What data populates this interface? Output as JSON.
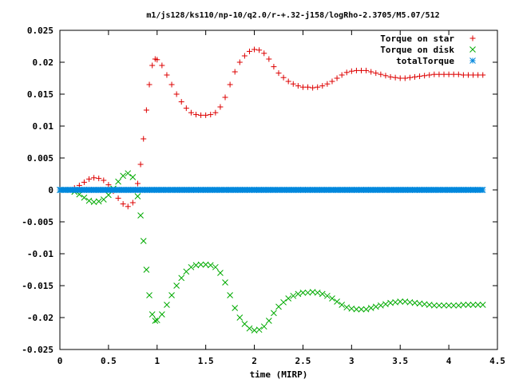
{
  "chart_data": {
    "type": "scatter",
    "title": "m1/js128/ks110/np-10/q2.0/r-+.32-j158/logRho-2.3705/M5.07/512",
    "xlabel": "time (MIRP)",
    "ylabel": "",
    "xlim": [
      0,
      4.5
    ],
    "ylim": [
      -0.025,
      0.025
    ],
    "x_ticks": [
      "0",
      "0.5",
      "1",
      "1.5",
      "2",
      "2.5",
      "3",
      "3.5",
      "4",
      "4.5"
    ],
    "x_tick_values": [
      0,
      0.5,
      1,
      1.5,
      2,
      2.5,
      3,
      3.5,
      4,
      4.5
    ],
    "y_ticks": [
      "0.025",
      "0.02",
      "0.015",
      "0.01",
      "0.005",
      "0",
      "-0.005",
      "-0.01",
      "-0.015",
      "-0.02",
      "-0.025"
    ],
    "y_tick_values": [
      0.025,
      0.02,
      0.015,
      0.01,
      0.005,
      0,
      -0.005,
      -0.01,
      -0.015,
      -0.02,
      -0.025
    ],
    "grid": false,
    "legend_position": "top-right",
    "x_range": [
      0,
      4.35
    ],
    "series": [
      {
        "name": "Torque on star",
        "marker": "plus",
        "color": "#dd0000",
        "points": [
          [
            0.0,
            0.0
          ],
          [
            0.05,
            0.0
          ],
          [
            0.1,
            0.0
          ],
          [
            0.15,
            0.0003
          ],
          [
            0.2,
            0.0007
          ],
          [
            0.25,
            0.0012
          ],
          [
            0.3,
            0.0017
          ],
          [
            0.35,
            0.0019
          ],
          [
            0.4,
            0.0018
          ],
          [
            0.45,
            0.0015
          ],
          [
            0.5,
            0.0008
          ],
          [
            0.55,
            -0.0002
          ],
          [
            0.6,
            -0.0013
          ],
          [
            0.65,
            -0.0022
          ],
          [
            0.7,
            -0.0026
          ],
          [
            0.75,
            -0.002
          ],
          [
            0.8,
            0.001
          ],
          [
            0.83,
            0.004
          ],
          [
            0.86,
            0.008
          ],
          [
            0.89,
            0.0125
          ],
          [
            0.92,
            0.0165
          ],
          [
            0.95,
            0.0195
          ],
          [
            0.98,
            0.0205
          ],
          [
            1.0,
            0.0204
          ],
          [
            1.05,
            0.0195
          ],
          [
            1.1,
            0.018
          ],
          [
            1.15,
            0.0165
          ],
          [
            1.2,
            0.015
          ],
          [
            1.25,
            0.0138
          ],
          [
            1.3,
            0.0128
          ],
          [
            1.35,
            0.0121
          ],
          [
            1.4,
            0.0118
          ],
          [
            1.45,
            0.0117
          ],
          [
            1.5,
            0.0117
          ],
          [
            1.55,
            0.0118
          ],
          [
            1.6,
            0.0121
          ],
          [
            1.65,
            0.013
          ],
          [
            1.7,
            0.0145
          ],
          [
            1.75,
            0.0165
          ],
          [
            1.8,
            0.0185
          ],
          [
            1.85,
            0.02
          ],
          [
            1.9,
            0.021
          ],
          [
            1.95,
            0.0217
          ],
          [
            2.0,
            0.022
          ],
          [
            2.05,
            0.0219
          ],
          [
            2.1,
            0.0214
          ],
          [
            2.15,
            0.0205
          ],
          [
            2.2,
            0.0193
          ],
          [
            2.25,
            0.0183
          ],
          [
            2.3,
            0.0176
          ],
          [
            2.35,
            0.017
          ],
          [
            2.4,
            0.0166
          ],
          [
            2.45,
            0.0163
          ],
          [
            2.5,
            0.0161
          ],
          [
            2.55,
            0.0161
          ],
          [
            2.6,
            0.016
          ],
          [
            2.65,
            0.0161
          ],
          [
            2.7,
            0.0163
          ],
          [
            2.75,
            0.0166
          ],
          [
            2.8,
            0.017
          ],
          [
            2.85,
            0.0175
          ],
          [
            2.9,
            0.018
          ],
          [
            2.95,
            0.0184
          ],
          [
            3.0,
            0.0186
          ],
          [
            3.05,
            0.0187
          ],
          [
            3.1,
            0.0187
          ],
          [
            3.15,
            0.0187
          ],
          [
            3.2,
            0.0185
          ],
          [
            3.25,
            0.0183
          ],
          [
            3.3,
            0.0181
          ],
          [
            3.35,
            0.0179
          ],
          [
            3.4,
            0.0177
          ],
          [
            3.45,
            0.0176
          ],
          [
            3.5,
            0.0175
          ],
          [
            3.55,
            0.0175
          ],
          [
            3.6,
            0.0176
          ],
          [
            3.65,
            0.0177
          ],
          [
            3.7,
            0.0178
          ],
          [
            3.75,
            0.0179
          ],
          [
            3.8,
            0.018
          ],
          [
            3.85,
            0.0181
          ],
          [
            3.9,
            0.0181
          ],
          [
            3.95,
            0.0181
          ],
          [
            4.0,
            0.0181
          ],
          [
            4.05,
            0.0181
          ],
          [
            4.1,
            0.0181
          ],
          [
            4.15,
            0.018
          ],
          [
            4.2,
            0.018
          ],
          [
            4.25,
            0.018
          ],
          [
            4.3,
            0.018
          ],
          [
            4.35,
            0.018
          ]
        ]
      },
      {
        "name": "Torque on disk",
        "marker": "cross",
        "color": "#00aa00",
        "points": [
          [
            0.0,
            0.0
          ],
          [
            0.05,
            0.0
          ],
          [
            0.1,
            0.0
          ],
          [
            0.15,
            -0.0003
          ],
          [
            0.2,
            -0.0007
          ],
          [
            0.25,
            -0.0012
          ],
          [
            0.3,
            -0.0017
          ],
          [
            0.35,
            -0.0019
          ],
          [
            0.4,
            -0.0018
          ],
          [
            0.45,
            -0.0015
          ],
          [
            0.5,
            -0.0008
          ],
          [
            0.55,
            0.0002
          ],
          [
            0.6,
            0.0013
          ],
          [
            0.65,
            0.0022
          ],
          [
            0.7,
            0.0026
          ],
          [
            0.75,
            0.002
          ],
          [
            0.8,
            -0.001
          ],
          [
            0.83,
            -0.004
          ],
          [
            0.86,
            -0.008
          ],
          [
            0.89,
            -0.0125
          ],
          [
            0.92,
            -0.0165
          ],
          [
            0.95,
            -0.0195
          ],
          [
            0.98,
            -0.0205
          ],
          [
            1.0,
            -0.0204
          ],
          [
            1.05,
            -0.0195
          ],
          [
            1.1,
            -0.018
          ],
          [
            1.15,
            -0.0165
          ],
          [
            1.2,
            -0.015
          ],
          [
            1.25,
            -0.0138
          ],
          [
            1.3,
            -0.0128
          ],
          [
            1.35,
            -0.0121
          ],
          [
            1.4,
            -0.0118
          ],
          [
            1.45,
            -0.0117
          ],
          [
            1.5,
            -0.0117
          ],
          [
            1.55,
            -0.0118
          ],
          [
            1.6,
            -0.0121
          ],
          [
            1.65,
            -0.013
          ],
          [
            1.7,
            -0.0145
          ],
          [
            1.75,
            -0.0165
          ],
          [
            1.8,
            -0.0185
          ],
          [
            1.85,
            -0.02
          ],
          [
            1.9,
            -0.021
          ],
          [
            1.95,
            -0.0217
          ],
          [
            2.0,
            -0.022
          ],
          [
            2.05,
            -0.0219
          ],
          [
            2.1,
            -0.0214
          ],
          [
            2.15,
            -0.0205
          ],
          [
            2.2,
            -0.0193
          ],
          [
            2.25,
            -0.0183
          ],
          [
            2.3,
            -0.0176
          ],
          [
            2.35,
            -0.017
          ],
          [
            2.4,
            -0.0166
          ],
          [
            2.45,
            -0.0163
          ],
          [
            2.5,
            -0.0161
          ],
          [
            2.55,
            -0.0161
          ],
          [
            2.6,
            -0.016
          ],
          [
            2.65,
            -0.0161
          ],
          [
            2.7,
            -0.0163
          ],
          [
            2.75,
            -0.0166
          ],
          [
            2.8,
            -0.017
          ],
          [
            2.85,
            -0.0175
          ],
          [
            2.9,
            -0.018
          ],
          [
            2.95,
            -0.0184
          ],
          [
            3.0,
            -0.0186
          ],
          [
            3.05,
            -0.0187
          ],
          [
            3.1,
            -0.0187
          ],
          [
            3.15,
            -0.0187
          ],
          [
            3.2,
            -0.0185
          ],
          [
            3.25,
            -0.0183
          ],
          [
            3.3,
            -0.0181
          ],
          [
            3.35,
            -0.0179
          ],
          [
            3.4,
            -0.0177
          ],
          [
            3.45,
            -0.0176
          ],
          [
            3.5,
            -0.0175
          ],
          [
            3.55,
            -0.0175
          ],
          [
            3.6,
            -0.0176
          ],
          [
            3.65,
            -0.0177
          ],
          [
            3.7,
            -0.0178
          ],
          [
            3.75,
            -0.0179
          ],
          [
            3.8,
            -0.018
          ],
          [
            3.85,
            -0.0181
          ],
          [
            3.9,
            -0.0181
          ],
          [
            3.95,
            -0.0181
          ],
          [
            4.0,
            -0.0181
          ],
          [
            4.05,
            -0.0181
          ],
          [
            4.1,
            -0.0181
          ],
          [
            4.15,
            -0.018
          ],
          [
            4.2,
            -0.018
          ],
          [
            4.25,
            -0.018
          ],
          [
            4.3,
            -0.018
          ],
          [
            4.35,
            -0.018
          ]
        ]
      },
      {
        "name": "totalTorque",
        "marker": "star",
        "color": "#0088dd",
        "points": [
          [
            0.0,
            0
          ],
          [
            0.05,
            0
          ],
          [
            0.1,
            0
          ],
          [
            0.15,
            0
          ],
          [
            0.2,
            0
          ],
          [
            0.25,
            0
          ],
          [
            0.3,
            0
          ],
          [
            0.35,
            0
          ],
          [
            0.4,
            0
          ],
          [
            0.45,
            0
          ],
          [
            0.5,
            0
          ],
          [
            0.55,
            0
          ],
          [
            0.6,
            0
          ],
          [
            0.65,
            0
          ],
          [
            0.7,
            0
          ],
          [
            0.75,
            0
          ],
          [
            0.8,
            0
          ],
          [
            0.85,
            0
          ],
          [
            0.9,
            0
          ],
          [
            0.95,
            0
          ],
          [
            1.0,
            0
          ],
          [
            1.05,
            0
          ],
          [
            1.1,
            0
          ],
          [
            1.15,
            0
          ],
          [
            1.2,
            0
          ],
          [
            1.25,
            0
          ],
          [
            1.3,
            0
          ],
          [
            1.35,
            0
          ],
          [
            1.4,
            0
          ],
          [
            1.45,
            0
          ],
          [
            1.5,
            0
          ],
          [
            1.55,
            0
          ],
          [
            1.6,
            0
          ],
          [
            1.65,
            0
          ],
          [
            1.7,
            0
          ],
          [
            1.75,
            0
          ],
          [
            1.8,
            0
          ],
          [
            1.85,
            0
          ],
          [
            1.9,
            0
          ],
          [
            1.95,
            0
          ],
          [
            2.0,
            0
          ],
          [
            2.05,
            0
          ],
          [
            2.1,
            0
          ],
          [
            2.15,
            0
          ],
          [
            2.2,
            0
          ],
          [
            2.25,
            0
          ],
          [
            2.3,
            0
          ],
          [
            2.35,
            0
          ],
          [
            2.4,
            0
          ],
          [
            2.45,
            0
          ],
          [
            2.5,
            0
          ],
          [
            2.55,
            0
          ],
          [
            2.6,
            0
          ],
          [
            2.65,
            0
          ],
          [
            2.7,
            0
          ],
          [
            2.75,
            0
          ],
          [
            2.8,
            0
          ],
          [
            2.85,
            0
          ],
          [
            2.9,
            0
          ],
          [
            2.95,
            0
          ],
          [
            3.0,
            0
          ],
          [
            3.05,
            0
          ],
          [
            3.1,
            0
          ],
          [
            3.15,
            0
          ],
          [
            3.2,
            0
          ],
          [
            3.25,
            0
          ],
          [
            3.3,
            0
          ],
          [
            3.35,
            0
          ],
          [
            3.4,
            0
          ],
          [
            3.45,
            0
          ],
          [
            3.5,
            0
          ],
          [
            3.55,
            0
          ],
          [
            3.6,
            0
          ],
          [
            3.65,
            0
          ],
          [
            3.7,
            0
          ],
          [
            3.75,
            0
          ],
          [
            3.8,
            0
          ],
          [
            3.85,
            0
          ],
          [
            3.9,
            0
          ],
          [
            3.95,
            0
          ],
          [
            4.0,
            0
          ],
          [
            4.05,
            0
          ],
          [
            4.1,
            0
          ],
          [
            4.15,
            0
          ],
          [
            4.2,
            0
          ],
          [
            4.25,
            0
          ],
          [
            4.3,
            0
          ],
          [
            4.35,
            0
          ]
        ]
      }
    ]
  }
}
